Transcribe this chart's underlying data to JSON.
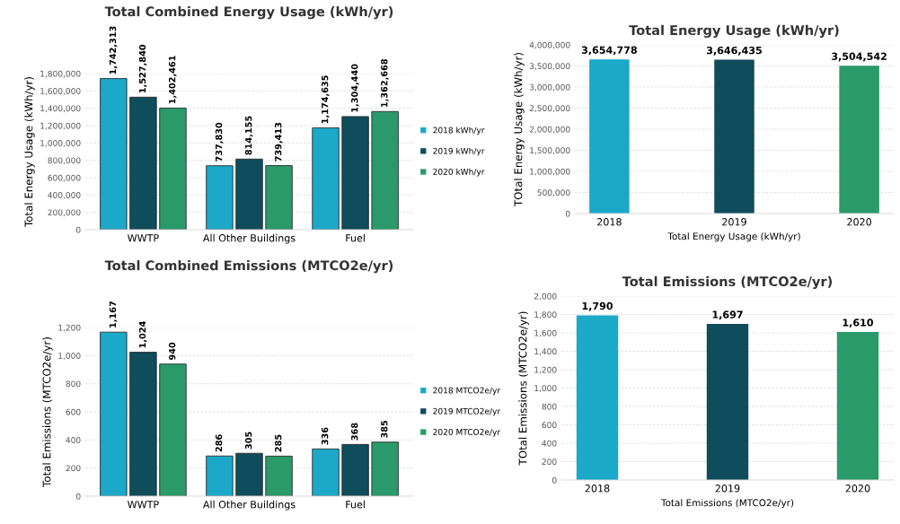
{
  "chart_data": [
    {
      "type": "bar",
      "title": "Total Combined Energy Usage (kWh/yr)",
      "ylabel": "Total Energy Usage (kWh/yr)",
      "categories": [
        "WWTP",
        "All Other Buildings",
        "Fuel"
      ],
      "series": [
        {
          "name": "2018 kWh/yr",
          "color": "#1ba8c9",
          "values": [
            1742313,
            737830,
            1174635
          ],
          "value_labels": [
            "1,742,313",
            "737,830",
            "1,174,635"
          ]
        },
        {
          "name": "2019 kWh/yr",
          "color": "#0f4c5c",
          "values": [
            1527840,
            814155,
            1304440
          ],
          "value_labels": [
            "1,527,840",
            "814,155",
            "1,304,440"
          ]
        },
        {
          "name": "2020 kWh/yr",
          "color": "#2a9a6a",
          "values": [
            1402461,
            739413,
            1362668
          ],
          "value_labels": [
            "1,402,461",
            "739,413",
            "1,362,668"
          ]
        }
      ],
      "ylim": [
        0,
        1800000
      ],
      "yticks": [
        {
          "value": 0,
          "label": "0"
        },
        {
          "value": 200000,
          "label": "200,000"
        },
        {
          "value": 400000,
          "label": "400,000"
        },
        {
          "value": 600000,
          "label": "600,000"
        },
        {
          "value": 800000,
          "label": "800,000"
        },
        {
          "value": 1000000,
          "label": "1,000,000"
        },
        {
          "value": 1200000,
          "label": "1,200,000"
        },
        {
          "value": 1400000,
          "label": "1,400,000"
        },
        {
          "value": 1600000,
          "label": "1,600,000"
        },
        {
          "value": 1800000,
          "label": "1,800,000"
        }
      ],
      "grid": "y",
      "legend": "right"
    },
    {
      "type": "bar",
      "title": "Total Energy Usage (kWh/yr)",
      "ylabel": "TOtal Energy Usage (kWh/yr)",
      "xlabel": "Total Energy Usage (kWh/yr)",
      "categories": [
        "2018",
        "2019",
        "2020"
      ],
      "values": [
        3654778,
        3646435,
        3504542
      ],
      "value_labels": [
        "3,654,778",
        "3,646,435",
        "3,504,542"
      ],
      "colors": [
        "#1ba8c9",
        "#0f4c5c",
        "#2a9a6a"
      ],
      "ylim": [
        0,
        4000000
      ],
      "yticks": [
        {
          "value": 0,
          "label": "0"
        },
        {
          "value": 500000,
          "label": "500,000"
        },
        {
          "value": 1000000,
          "label": "1,000,000"
        },
        {
          "value": 1500000,
          "label": "1,500,000"
        },
        {
          "value": 2000000,
          "label": "2,000,000"
        },
        {
          "value": 2500000,
          "label": "2,500,000"
        },
        {
          "value": 3000000,
          "label": "3,000,000"
        },
        {
          "value": 3500000,
          "label": "3,500,000"
        },
        {
          "value": 4000000,
          "label": "4,000,000"
        }
      ],
      "grid": "y"
    },
    {
      "type": "bar",
      "title": "Total Combined Emissions (MTCO2e/yr)",
      "ylabel": "Total Emissions (MTCO2e/yr)",
      "categories": [
        "WWTP",
        "All Other Buildings",
        "Fuel"
      ],
      "series": [
        {
          "name": "2018 MTCO2e/yr",
          "color": "#1ba8c9",
          "values": [
            1167,
            286,
            336
          ],
          "value_labels": [
            "1,167",
            "286",
            "336"
          ]
        },
        {
          "name": "2019 MTCO2e/yr",
          "color": "#0f4c5c",
          "values": [
            1024,
            305,
            368
          ],
          "value_labels": [
            "1,024",
            "305",
            "368"
          ]
        },
        {
          "name": "2020 MTCO2e/yr",
          "color": "#2a9a6a",
          "values": [
            940,
            285,
            385
          ],
          "value_labels": [
            "940",
            "285",
            "385"
          ]
        }
      ],
      "ylim": [
        0,
        1200
      ],
      "yticks": [
        {
          "value": 0,
          "label": "0"
        },
        {
          "value": 200,
          "label": "200"
        },
        {
          "value": 400,
          "label": "400"
        },
        {
          "value": 600,
          "label": "600"
        },
        {
          "value": 800,
          "label": "800"
        },
        {
          "value": 1000,
          "label": "1,000"
        },
        {
          "value": 1200,
          "label": "1,200"
        }
      ],
      "grid": "y",
      "legend": "right"
    },
    {
      "type": "bar",
      "title": "Total Emissions (MTCO2e/yr)",
      "ylabel": "TOtal Emissions (MTCO2e/yr)",
      "xlabel": "Total Emissions (MTCO2e/yr)",
      "categories": [
        "2018",
        "2019",
        "2020"
      ],
      "values": [
        1790,
        1697,
        1610
      ],
      "value_labels": [
        "1,790",
        "1,697",
        "1,610"
      ],
      "colors": [
        "#1ba8c9",
        "#0f4c5c",
        "#2a9a6a"
      ],
      "ylim": [
        0,
        2000
      ],
      "yticks": [
        {
          "value": 0,
          "label": "0"
        },
        {
          "value": 200,
          "label": "200"
        },
        {
          "value": 400,
          "label": "400"
        },
        {
          "value": 600,
          "label": "600"
        },
        {
          "value": 800,
          "label": "800"
        },
        {
          "value": 1000,
          "label": "1,000"
        },
        {
          "value": 1200,
          "label": "1,200"
        },
        {
          "value": 1400,
          "label": "1,400"
        },
        {
          "value": 1600,
          "label": "1,600"
        },
        {
          "value": 1800,
          "label": "1,800"
        },
        {
          "value": 2000,
          "label": "2,000"
        }
      ],
      "grid": "y"
    }
  ]
}
